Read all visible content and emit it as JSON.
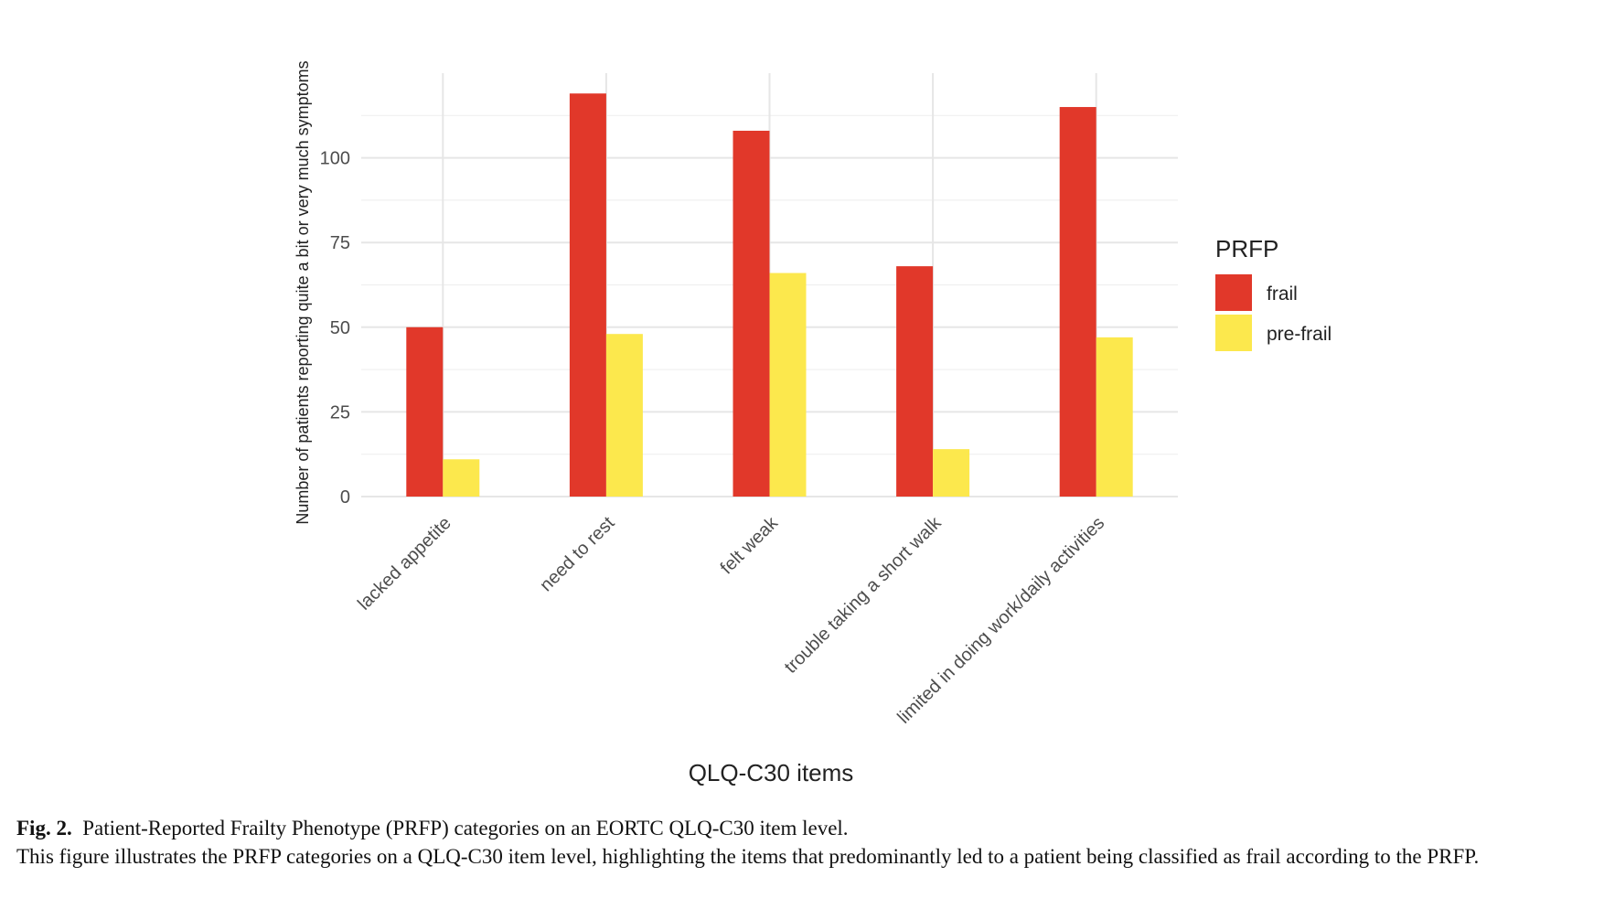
{
  "chart_data": {
    "type": "bar",
    "categories": [
      "lacked appetite",
      "need to rest",
      "felt weak",
      "trouble taking a short walk",
      "limited in doing work/daily activities"
    ],
    "series": [
      {
        "name": "frail",
        "color": "#E1382A",
        "values": [
          50,
          119,
          108,
          68,
          115
        ]
      },
      {
        "name": "pre-frail",
        "color": "#FCE84D",
        "values": [
          11,
          48,
          66,
          14,
          47
        ]
      }
    ],
    "xlabel": "QLQ-C30 items",
    "ylabel": "Number of patients reporting quite a bit or very much symptoms",
    "yticks": [
      0,
      25,
      50,
      75,
      100
    ],
    "ylim": [
      0,
      125
    ],
    "grid": true,
    "legend": {
      "title": "PRFP",
      "placement": "right"
    }
  },
  "caption": {
    "label": "Fig. 2.",
    "title": "Patient-Reported Frailty Phenotype (PRFP) categories on an EORTC QLQ-C30 item level.",
    "text": "This figure illustrates the PRFP categories on a QLQ-C30 item level, highlighting the items that predominantly led to a patient being classified as frail according to the PRFP."
  }
}
